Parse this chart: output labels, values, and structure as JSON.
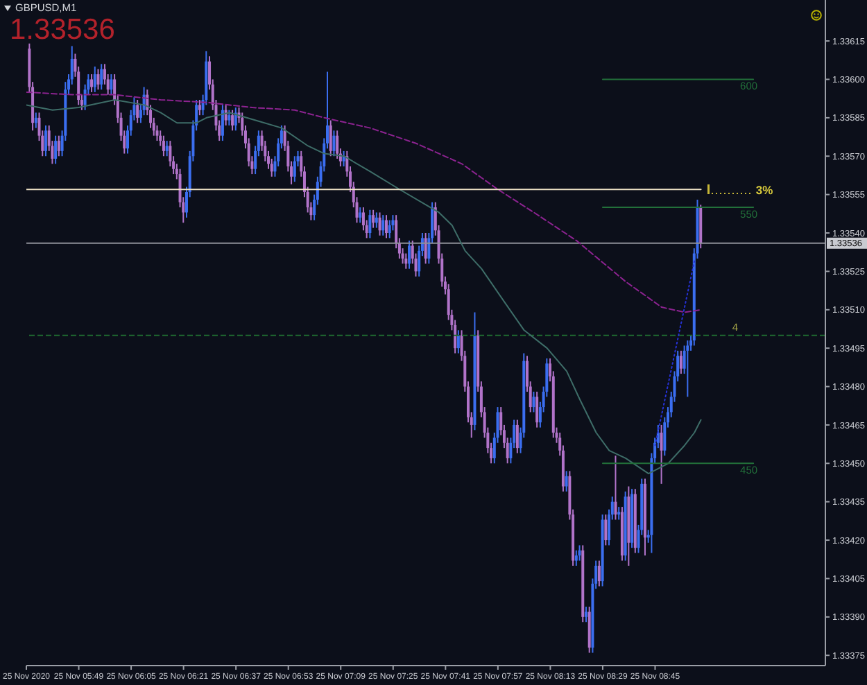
{
  "chart_data": {
    "type": "candlestick",
    "title": "GBPUSD,M1",
    "subtitle": "1.33536",
    "x": [
      "2020-11-25T05:34",
      "2020-11-25T05:35",
      "2020-11-25T05:36",
      "2020-11-25T05:37",
      "2020-11-25T05:38",
      "2020-11-25T05:39",
      "2020-11-25T05:40",
      "2020-11-25T05:41",
      "2020-11-25T05:42",
      "2020-11-25T05:43",
      "2020-11-25T05:44",
      "2020-11-25T05:45",
      "2020-11-25T05:46",
      "2020-11-25T05:47",
      "2020-11-25T05:48",
      "2020-11-25T05:49",
      "2020-11-25T05:50",
      "2020-11-25T05:51",
      "2020-11-25T05:52",
      "2020-11-25T05:53",
      "2020-11-25T05:54",
      "2020-11-25T05:55",
      "2020-11-25T05:56",
      "2020-11-25T05:57",
      "2020-11-25T05:58",
      "2020-11-25T05:59",
      "2020-11-25T06:00",
      "2020-11-25T06:01",
      "2020-11-25T06:02",
      "2020-11-25T06:03",
      "2020-11-25T06:04",
      "2020-11-25T06:05",
      "2020-11-25T06:06",
      "2020-11-25T06:07",
      "2020-11-25T06:08",
      "2020-11-25T06:09",
      "2020-11-25T06:10",
      "2020-11-25T06:11",
      "2020-11-25T06:12",
      "2020-11-25T06:13",
      "2020-11-25T06:14",
      "2020-11-25T06:15",
      "2020-11-25T06:16",
      "2020-11-25T06:17",
      "2020-11-25T06:18",
      "2020-11-25T06:19",
      "2020-11-25T06:20",
      "2020-11-25T06:21",
      "2020-11-25T06:22",
      "2020-11-25T06:23",
      "2020-11-25T06:24",
      "2020-11-25T06:25",
      "2020-11-25T06:26",
      "2020-11-25T06:27",
      "2020-11-25T06:28",
      "2020-11-25T06:29",
      "2020-11-25T06:30",
      "2020-11-25T06:31",
      "2020-11-25T06:32",
      "2020-11-25T06:33",
      "2020-11-25T06:34",
      "2020-11-25T06:35",
      "2020-11-25T06:36",
      "2020-11-25T06:37",
      "2020-11-25T06:38",
      "2020-11-25T06:39",
      "2020-11-25T06:40",
      "2020-11-25T06:41",
      "2020-11-25T06:42",
      "2020-11-25T06:43",
      "2020-11-25T06:44",
      "2020-11-25T06:45",
      "2020-11-25T06:46",
      "2020-11-25T06:47",
      "2020-11-25T06:48",
      "2020-11-25T06:49",
      "2020-11-25T06:50",
      "2020-11-25T06:51",
      "2020-11-25T06:52",
      "2020-11-25T06:53",
      "2020-11-25T06:54",
      "2020-11-25T06:55",
      "2020-11-25T06:56",
      "2020-11-25T06:57",
      "2020-11-25T06:58",
      "2020-11-25T06:59",
      "2020-11-25T07:00",
      "2020-11-25T07:01",
      "2020-11-25T07:02",
      "2020-11-25T07:03",
      "2020-11-25T07:04",
      "2020-11-25T07:05",
      "2020-11-25T07:06",
      "2020-11-25T07:07",
      "2020-11-25T07:08",
      "2020-11-25T07:09",
      "2020-11-25T07:10",
      "2020-11-25T07:11",
      "2020-11-25T07:12",
      "2020-11-25T07:13",
      "2020-11-25T07:14",
      "2020-11-25T07:15",
      "2020-11-25T07:16",
      "2020-11-25T07:17",
      "2020-11-25T07:18",
      "2020-11-25T07:19",
      "2020-11-25T07:20",
      "2020-11-25T07:21",
      "2020-11-25T07:22",
      "2020-11-25T07:23",
      "2020-11-25T07:24",
      "2020-11-25T07:25",
      "2020-11-25T07:26",
      "2020-11-25T07:27",
      "2020-11-25T07:28",
      "2020-11-25T07:29",
      "2020-11-25T07:30",
      "2020-11-25T07:31",
      "2020-11-25T07:32",
      "2020-11-25T07:33",
      "2020-11-25T07:34",
      "2020-11-25T07:35",
      "2020-11-25T07:36",
      "2020-11-25T07:37",
      "2020-11-25T07:38",
      "2020-11-25T07:39",
      "2020-11-25T07:40",
      "2020-11-25T07:41",
      "2020-11-25T07:42",
      "2020-11-25T07:43",
      "2020-11-25T07:44",
      "2020-11-25T07:45",
      "2020-11-25T07:46",
      "2020-11-25T07:47",
      "2020-11-25T07:48",
      "2020-11-25T07:49",
      "2020-11-25T07:50",
      "2020-11-25T07:51",
      "2020-11-25T07:52",
      "2020-11-25T07:53",
      "2020-11-25T07:54",
      "2020-11-25T07:55",
      "2020-11-25T07:56",
      "2020-11-25T07:57",
      "2020-11-25T07:58",
      "2020-11-25T07:59",
      "2020-11-25T08:00",
      "2020-11-25T08:01",
      "2020-11-25T08:02",
      "2020-11-25T08:03",
      "2020-11-25T08:04",
      "2020-11-25T08:05",
      "2020-11-25T08:06",
      "2020-11-25T08:07",
      "2020-11-25T08:08",
      "2020-11-25T08:09",
      "2020-11-25T08:10",
      "2020-11-25T08:11",
      "2020-11-25T08:12",
      "2020-11-25T08:13",
      "2020-11-25T08:14",
      "2020-11-25T08:15",
      "2020-11-25T08:16",
      "2020-11-25T08:17",
      "2020-11-25T08:18",
      "2020-11-25T08:19",
      "2020-11-25T08:20",
      "2020-11-25T08:21",
      "2020-11-25T08:22",
      "2020-11-25T08:23",
      "2020-11-25T08:24",
      "2020-11-25T08:25",
      "2020-11-25T08:26",
      "2020-11-25T08:27",
      "2020-11-25T08:28",
      "2020-11-25T08:29",
      "2020-11-25T08:30",
      "2020-11-25T08:31",
      "2020-11-25T08:32",
      "2020-11-25T08:33",
      "2020-11-25T08:34",
      "2020-11-25T08:35",
      "2020-11-25T08:36",
      "2020-11-25T08:37",
      "2020-11-25T08:38",
      "2020-11-25T08:39",
      "2020-11-25T08:40",
      "2020-11-25T08:41",
      "2020-11-25T08:42",
      "2020-11-25T08:43",
      "2020-11-25T08:44",
      "2020-11-25T08:45",
      "2020-11-25T08:46",
      "2020-11-25T08:47",
      "2020-11-25T08:48",
      "2020-11-25T08:49",
      "2020-11-25T08:50",
      "2020-11-25T08:51",
      "2020-11-25T08:52",
      "2020-11-25T08:53",
      "2020-11-25T08:54",
      "2020-11-25T08:55",
      "2020-11-25T08:56",
      "2020-11-25T08:57",
      "2020-11-25T08:58",
      "2020-11-25T08:59"
    ],
    "ohlc": [
      [
        1.33612,
        1.33614,
        1.33595,
        1.33597
      ],
      [
        1.33597,
        1.33599,
        1.3358,
        1.33583
      ],
      [
        1.33583,
        1.33587,
        1.33581,
        1.33585
      ],
      [
        1.33585,
        1.33587,
        1.33576,
        1.33578
      ],
      [
        1.33578,
        1.3358,
        1.3357,
        1.33572
      ],
      [
        1.33572,
        1.33582,
        1.3357,
        1.3358
      ],
      [
        1.3358,
        1.33582,
        1.33572,
        1.33574
      ],
      [
        1.33574,
        1.33576,
        1.33567,
        1.33569
      ],
      [
        1.33569,
        1.33578,
        1.33567,
        1.33576
      ],
      [
        1.33576,
        1.33578,
        1.3357,
        1.33572
      ],
      [
        1.33572,
        1.3358,
        1.3357,
        1.33578
      ],
      [
        1.33578,
        1.33599,
        1.33576,
        1.33596
      ],
      [
        1.33596,
        1.33602,
        1.33594,
        1.336
      ],
      [
        1.336,
        1.33613,
        1.33598,
        1.33608
      ],
      [
        1.33608,
        1.3361,
        1.33601,
        1.33603
      ],
      [
        1.33603,
        1.33605,
        1.3359,
        1.33592
      ],
      [
        1.33592,
        1.33594,
        1.33588,
        1.3359
      ],
      [
        1.3359,
        1.33598,
        1.33588,
        1.33596
      ],
      [
        1.33596,
        1.33602,
        1.33594,
        1.336
      ],
      [
        1.336,
        1.33602,
        1.33595,
        1.33597
      ],
      [
        1.33597,
        1.33605,
        1.33595,
        1.33602
      ],
      [
        1.33602,
        1.33604,
        1.33596,
        1.33598
      ],
      [
        1.33598,
        1.33606,
        1.33596,
        1.33604
      ],
      [
        1.33604,
        1.33606,
        1.33598,
        1.336
      ],
      [
        1.336,
        1.33602,
        1.33594,
        1.33596
      ],
      [
        1.33596,
        1.33602,
        1.33594,
        1.336
      ],
      [
        1.336,
        1.33602,
        1.3359,
        1.33592
      ],
      [
        1.33592,
        1.33594,
        1.33583,
        1.33585
      ],
      [
        1.33585,
        1.33587,
        1.33576,
        1.33578
      ],
      [
        1.33578,
        1.3358,
        1.33571,
        1.33573
      ],
      [
        1.33573,
        1.33582,
        1.33571,
        1.3358
      ],
      [
        1.3358,
        1.33588,
        1.33578,
        1.33586
      ],
      [
        1.33586,
        1.33593,
        1.33584,
        1.3359
      ],
      [
        1.3359,
        1.33592,
        1.33583,
        1.33585
      ],
      [
        1.33585,
        1.3359,
        1.33583,
        1.33588
      ],
      [
        1.33588,
        1.33597,
        1.33586,
        1.33594
      ],
      [
        1.33594,
        1.33596,
        1.33586,
        1.33588
      ],
      [
        1.33588,
        1.3359,
        1.33581,
        1.33583
      ],
      [
        1.33583,
        1.33585,
        1.33578,
        1.3358
      ],
      [
        1.3358,
        1.33582,
        1.33576,
        1.33578
      ],
      [
        1.33578,
        1.3358,
        1.33574,
        1.33576
      ],
      [
        1.33576,
        1.33578,
        1.3357,
        1.33572
      ],
      [
        1.33572,
        1.33576,
        1.3357,
        1.33574
      ],
      [
        1.33574,
        1.33576,
        1.33566,
        1.33568
      ],
      [
        1.33568,
        1.3357,
        1.33563,
        1.33565
      ],
      [
        1.33565,
        1.33567,
        1.33561,
        1.33563
      ],
      [
        1.33563,
        1.33565,
        1.3355,
        1.33552
      ],
      [
        1.33552,
        1.33554,
        1.33544,
        1.33548
      ],
      [
        1.33548,
        1.33558,
        1.33546,
        1.33556
      ],
      [
        1.33556,
        1.33572,
        1.33554,
        1.3357
      ],
      [
        1.3357,
        1.33584,
        1.33568,
        1.33582
      ],
      [
        1.33582,
        1.33592,
        1.3358,
        1.3359
      ],
      [
        1.3359,
        1.33592,
        1.33586,
        1.33588
      ],
      [
        1.33588,
        1.33594,
        1.33586,
        1.33592
      ],
      [
        1.33592,
        1.33611,
        1.3359,
        1.33607
      ],
      [
        1.33607,
        1.33609,
        1.33596,
        1.33598
      ],
      [
        1.33598,
        1.336,
        1.33588,
        1.3359
      ],
      [
        1.3359,
        1.33592,
        1.3358,
        1.33582
      ],
      [
        1.33582,
        1.33584,
        1.33576,
        1.33578
      ],
      [
        1.33578,
        1.3359,
        1.33576,
        1.33588
      ],
      [
        1.33588,
        1.3359,
        1.33582,
        1.33584
      ],
      [
        1.33584,
        1.33588,
        1.33582,
        1.33586
      ],
      [
        1.33586,
        1.33588,
        1.3358,
        1.33582
      ],
      [
        1.33582,
        1.33589,
        1.3358,
        1.33587
      ],
      [
        1.33587,
        1.33589,
        1.33583,
        1.33585
      ],
      [
        1.33585,
        1.33587,
        1.33578,
        1.3358
      ],
      [
        1.3358,
        1.33582,
        1.33573,
        1.33575
      ],
      [
        1.33575,
        1.33577,
        1.33566,
        1.33568
      ],
      [
        1.33568,
        1.3357,
        1.33563,
        1.33565
      ],
      [
        1.33565,
        1.33574,
        1.33563,
        1.33572
      ],
      [
        1.33572,
        1.3358,
        1.3357,
        1.33578
      ],
      [
        1.33578,
        1.3358,
        1.33572,
        1.33574
      ],
      [
        1.33574,
        1.33576,
        1.33568,
        1.3357
      ],
      [
        1.3357,
        1.33572,
        1.33565,
        1.33567
      ],
      [
        1.33567,
        1.33569,
        1.33562,
        1.33564
      ],
      [
        1.33564,
        1.3357,
        1.33562,
        1.33568
      ],
      [
        1.33568,
        1.33577,
        1.33566,
        1.33575
      ],
      [
        1.33575,
        1.33582,
        1.33573,
        1.3358
      ],
      [
        1.3358,
        1.33582,
        1.33572,
        1.33574
      ],
      [
        1.33574,
        1.33576,
        1.33564,
        1.33566
      ],
      [
        1.33566,
        1.33568,
        1.33559,
        1.33562
      ],
      [
        1.33562,
        1.3357,
        1.3356,
        1.33568
      ],
      [
        1.33568,
        1.33572,
        1.33566,
        1.3357
      ],
      [
        1.3357,
        1.33572,
        1.33562,
        1.33564
      ],
      [
        1.33564,
        1.33566,
        1.33554,
        1.33556
      ],
      [
        1.33556,
        1.33558,
        1.33548,
        1.3355
      ],
      [
        1.3355,
        1.33552,
        1.33545,
        1.33547
      ],
      [
        1.33547,
        1.33555,
        1.33545,
        1.33553
      ],
      [
        1.33553,
        1.33562,
        1.33551,
        1.3356
      ],
      [
        1.3356,
        1.33568,
        1.33558,
        1.33566
      ],
      [
        1.33566,
        1.33577,
        1.33564,
        1.33575
      ],
      [
        1.33575,
        1.33603,
        1.33573,
        1.33582
      ],
      [
        1.33582,
        1.33584,
        1.3357,
        1.33572
      ],
      [
        1.33572,
        1.3358,
        1.3357,
        1.33578
      ],
      [
        1.33578,
        1.3358,
        1.33569,
        1.33571
      ],
      [
        1.33571,
        1.33573,
        1.33566,
        1.33568
      ],
      [
        1.33568,
        1.33572,
        1.33566,
        1.3357
      ],
      [
        1.3357,
        1.33572,
        1.33562,
        1.33564
      ],
      [
        1.33564,
        1.33566,
        1.33556,
        1.33558
      ],
      [
        1.33558,
        1.3356,
        1.3355,
        1.33552
      ],
      [
        1.33552,
        1.33554,
        1.33544,
        1.33546
      ],
      [
        1.33546,
        1.3355,
        1.33544,
        1.33548
      ],
      [
        1.33548,
        1.3355,
        1.33541,
        1.33543
      ],
      [
        1.33543,
        1.33545,
        1.33538,
        1.3354
      ],
      [
        1.3354,
        1.33549,
        1.33538,
        1.33547
      ],
      [
        1.33547,
        1.33549,
        1.33542,
        1.33544
      ],
      [
        1.33544,
        1.33548,
        1.33542,
        1.33546
      ],
      [
        1.33546,
        1.33548,
        1.33539,
        1.33541
      ],
      [
        1.33541,
        1.33547,
        1.33539,
        1.33545
      ],
      [
        1.33545,
        1.33547,
        1.33538,
        1.3354
      ],
      [
        1.3354,
        1.33545,
        1.33538,
        1.33543
      ],
      [
        1.33543,
        1.33547,
        1.33541,
        1.33545
      ],
      [
        1.33545,
        1.33547,
        1.33534,
        1.33536
      ],
      [
        1.33536,
        1.33538,
        1.3353,
        1.33532
      ],
      [
        1.33532,
        1.33534,
        1.33528,
        1.3353
      ],
      [
        1.3353,
        1.33532,
        1.33526,
        1.33528
      ],
      [
        1.33528,
        1.33537,
        1.33526,
        1.33535
      ],
      [
        1.33535,
        1.33537,
        1.33528,
        1.3353
      ],
      [
        1.3353,
        1.33532,
        1.33523,
        1.33525
      ],
      [
        1.33525,
        1.33535,
        1.33523,
        1.33533
      ],
      [
        1.33533,
        1.3354,
        1.33531,
        1.33538
      ],
      [
        1.33538,
        1.3354,
        1.33528,
        1.3353
      ],
      [
        1.3353,
        1.3354,
        1.33528,
        1.33538
      ],
      [
        1.33538,
        1.33552,
        1.33536,
        1.3355
      ],
      [
        1.3355,
        1.33552,
        1.33539,
        1.33541
      ],
      [
        1.33541,
        1.33543,
        1.33528,
        1.3353
      ],
      [
        1.3353,
        1.33532,
        1.33519,
        1.33521
      ],
      [
        1.33521,
        1.33523,
        1.33516,
        1.33518
      ],
      [
        1.33518,
        1.3352,
        1.33506,
        1.33508
      ],
      [
        1.33508,
        1.3351,
        1.33502,
        1.33504
      ],
      [
        1.33504,
        1.33506,
        1.33493,
        1.33495
      ],
      [
        1.33495,
        1.33502,
        1.33493,
        1.335
      ],
      [
        1.335,
        1.33502,
        1.3349,
        1.33492
      ],
      [
        1.33492,
        1.33494,
        1.33478,
        1.3348
      ],
      [
        1.3348,
        1.33482,
        1.33466,
        1.33468
      ],
      [
        1.33468,
        1.3347,
        1.3346,
        1.33465
      ],
      [
        1.33465,
        1.33509,
        1.33463,
        1.335
      ],
      [
        1.335,
        1.33502,
        1.33478,
        1.3348
      ],
      [
        1.3348,
        1.33482,
        1.33468,
        1.3347
      ],
      [
        1.3347,
        1.33472,
        1.3346,
        1.33462
      ],
      [
        1.33462,
        1.33464,
        1.33454,
        1.33456
      ],
      [
        1.33456,
        1.33458,
        1.3345,
        1.33452
      ],
      [
        1.33452,
        1.33462,
        1.3345,
        1.3346
      ],
      [
        1.3346,
        1.33472,
        1.33458,
        1.3347
      ],
      [
        1.3347,
        1.33472,
        1.33461,
        1.33463
      ],
      [
        1.33463,
        1.33465,
        1.33456,
        1.33458
      ],
      [
        1.33458,
        1.3346,
        1.3345,
        1.33452
      ],
      [
        1.33452,
        1.3346,
        1.3345,
        1.33458
      ],
      [
        1.33458,
        1.33467,
        1.33456,
        1.33465
      ],
      [
        1.33465,
        1.33467,
        1.33454,
        1.33456
      ],
      [
        1.33456,
        1.33464,
        1.33454,
        1.33462
      ],
      [
        1.33462,
        1.33493,
        1.3346,
        1.3349
      ],
      [
        1.3349,
        1.33492,
        1.33478,
        1.3348
      ],
      [
        1.3348,
        1.33482,
        1.3347,
        1.33472
      ],
      [
        1.33472,
        1.33478,
        1.3347,
        1.33476
      ],
      [
        1.33476,
        1.33478,
        1.33464,
        1.33466
      ],
      [
        1.33466,
        1.33474,
        1.33464,
        1.33472
      ],
      [
        1.33472,
        1.3348,
        1.3347,
        1.33478
      ],
      [
        1.33478,
        1.33491,
        1.33476,
        1.33489
      ],
      [
        1.33489,
        1.33491,
        1.33482,
        1.33484
      ],
      [
        1.33484,
        1.33486,
        1.3346,
        1.33462
      ],
      [
        1.33462,
        1.33464,
        1.33458,
        1.3346
      ],
      [
        1.3346,
        1.33462,
        1.33453,
        1.33455
      ],
      [
        1.33455,
        1.33457,
        1.33439,
        1.33441
      ],
      [
        1.33441,
        1.33447,
        1.33439,
        1.33445
      ],
      [
        1.33445,
        1.33447,
        1.33428,
        1.3343
      ],
      [
        1.3343,
        1.33432,
        1.3341,
        1.33412
      ],
      [
        1.33412,
        1.33416,
        1.3341,
        1.33414
      ],
      [
        1.33414,
        1.33418,
        1.33412,
        1.33416
      ],
      [
        1.33416,
        1.33418,
        1.33388,
        1.3339
      ],
      [
        1.3339,
        1.33394,
        1.33388,
        1.33392
      ],
      [
        1.33392,
        1.33394,
        1.33376,
        1.33378
      ],
      [
        1.33378,
        1.33405,
        1.33376,
        1.33403
      ],
      [
        1.33403,
        1.33412,
        1.33401,
        1.3341
      ],
      [
        1.3341,
        1.33412,
        1.33402,
        1.33404
      ],
      [
        1.33404,
        1.3343,
        1.33402,
        1.33428
      ],
      [
        1.33428,
        1.3343,
        1.33418,
        1.3342
      ],
      [
        1.3342,
        1.33432,
        1.33418,
        1.3343
      ],
      [
        1.3343,
        1.33437,
        1.33428,
        1.33435
      ],
      [
        1.33435,
        1.33453,
        1.33428,
        1.3343
      ],
      [
        1.3343,
        1.33433,
        1.33428,
        1.33431
      ],
      [
        1.33431,
        1.33433,
        1.33412,
        1.33414
      ],
      [
        1.33414,
        1.33439,
        1.33412,
        1.33437
      ],
      [
        1.33437,
        1.33441,
        1.3341,
        1.33419
      ],
      [
        1.33419,
        1.3344,
        1.33417,
        1.33438
      ],
      [
        1.33438,
        1.3344,
        1.33415,
        1.33417
      ],
      [
        1.33417,
        1.33426,
        1.33415,
        1.33424
      ],
      [
        1.33424,
        1.33444,
        1.33422,
        1.33442
      ],
      [
        1.33442,
        1.33444,
        1.33414,
        1.33421
      ],
      [
        1.33421,
        1.33424,
        1.33419,
        1.33422
      ],
      [
        1.33422,
        1.33454,
        1.33415,
        1.33452
      ],
      [
        1.33452,
        1.3346,
        1.3345,
        1.33458
      ],
      [
        1.33458,
        1.33465,
        1.33456,
        1.33462
      ],
      [
        1.33462,
        1.33465,
        1.33442,
        1.33455
      ],
      [
        1.33455,
        1.33468,
        1.33453,
        1.33466
      ],
      [
        1.33466,
        1.33472,
        1.33464,
        1.3347
      ],
      [
        1.3347,
        1.33478,
        1.33468,
        1.33476
      ],
      [
        1.33476,
        1.33486,
        1.33474,
        1.33484
      ],
      [
        1.33484,
        1.33494,
        1.33482,
        1.33492
      ],
      [
        1.33492,
        1.33494,
        1.33485,
        1.33487
      ],
      [
        1.33487,
        1.33496,
        1.33485,
        1.33494
      ],
      [
        1.33494,
        1.33498,
        1.33476,
        1.33496
      ],
      [
        1.33496,
        1.335,
        1.33494,
        1.33498
      ],
      [
        1.33498,
        1.33534,
        1.33496,
        1.33532
      ],
      [
        1.33532,
        1.33553,
        1.3353,
        1.3355
      ],
      [
        1.3355,
        1.33551,
        1.33534,
        1.33536
      ]
    ],
    "colors": [
      "#b173c9",
      "#b173c9",
      "#3b6ef0",
      "#b173c9",
      "#b173c9",
      "#3b6ef0",
      "#b173c9",
      "#b173c9",
      "#3b6ef0",
      "#b173c9",
      "#3b6ef0",
      "#3b6ef0",
      "#3b6ef0",
      "#3b6ef0",
      "#b173c9",
      "#b173c9",
      "#b173c9",
      "#3b6ef0",
      "#3b6ef0",
      "#b173c9",
      "#3b6ef0",
      "#b173c9",
      "#3b6ef0",
      "#b173c9",
      "#b173c9",
      "#3b6ef0",
      "#b173c9",
      "#b173c9",
      "#b173c9",
      "#b173c9",
      "#3b6ef0",
      "#3b6ef0",
      "#3b6ef0",
      "#b173c9",
      "#3b6ef0",
      "#3b6ef0",
      "#b173c9",
      "#b173c9",
      "#b173c9",
      "#b173c9",
      "#b173c9",
      "#b173c9",
      "#3b6ef0",
      "#b173c9",
      "#b173c9",
      "#b173c9",
      "#b173c9",
      "#b173c9",
      "#3b6ef0",
      "#3b6ef0",
      "#3b6ef0",
      "#3b6ef0",
      "#b173c9",
      "#3b6ef0",
      "#3b6ef0",
      "#b173c9",
      "#b173c9",
      "#b173c9",
      "#b173c9",
      "#3b6ef0",
      "#b173c9",
      "#3b6ef0",
      "#b173c9",
      "#3b6ef0",
      "#b173c9",
      "#b173c9",
      "#b173c9",
      "#b173c9",
      "#b173c9",
      "#3b6ef0",
      "#3b6ef0",
      "#b173c9",
      "#b173c9",
      "#b173c9",
      "#b173c9",
      "#3b6ef0",
      "#3b6ef0",
      "#3b6ef0",
      "#b173c9",
      "#b173c9",
      "#b173c9",
      "#3b6ef0",
      "#3b6ef0",
      "#b173c9",
      "#b173c9",
      "#b173c9",
      "#b173c9",
      "#3b6ef0",
      "#3b6ef0",
      "#3b6ef0",
      "#3b6ef0",
      "#3b6ef0",
      "#b173c9",
      "#3b6ef0",
      "#b173c9",
      "#b173c9",
      "#3b6ef0",
      "#b173c9",
      "#b173c9",
      "#b173c9",
      "#b173c9",
      "#3b6ef0",
      "#b173c9",
      "#b173c9",
      "#3b6ef0",
      "#b173c9",
      "#3b6ef0",
      "#b173c9",
      "#3b6ef0",
      "#b173c9",
      "#3b6ef0",
      "#3b6ef0",
      "#b173c9",
      "#b173c9",
      "#b173c9",
      "#b173c9",
      "#3b6ef0",
      "#b173c9",
      "#b173c9",
      "#3b6ef0",
      "#3b6ef0",
      "#b173c9",
      "#3b6ef0",
      "#3b6ef0",
      "#b173c9",
      "#b173c9",
      "#b173c9",
      "#b173c9",
      "#b173c9",
      "#b173c9",
      "#b173c9",
      "#3b6ef0",
      "#b173c9",
      "#b173c9",
      "#b173c9",
      "#b173c9",
      "#3b6ef0",
      "#b173c9",
      "#b173c9",
      "#b173c9",
      "#b173c9",
      "#b173c9",
      "#3b6ef0",
      "#3b6ef0",
      "#b173c9",
      "#b173c9",
      "#b173c9",
      "#3b6ef0",
      "#3b6ef0",
      "#b173c9",
      "#3b6ef0",
      "#3b6ef0",
      "#b173c9",
      "#b173c9",
      "#3b6ef0",
      "#b173c9",
      "#3b6ef0",
      "#3b6ef0",
      "#3b6ef0",
      "#b173c9",
      "#b173c9",
      "#b173c9",
      "#b173c9",
      "#b173c9",
      "#3b6ef0",
      "#b173c9",
      "#b173c9",
      "#3b6ef0",
      "#3b6ef0",
      "#b173c9",
      "#3b6ef0",
      "#b173c9",
      "#3b6ef0",
      "#3b6ef0",
      "#b173c9",
      "#3b6ef0",
      "#b173c9",
      "#3b6ef0",
      "#3b6ef0",
      "#b173c9",
      "#3b6ef0",
      "#b173c9",
      "#3b6ef0",
      "#b173c9",
      "#3b6ef0",
      "#b173c9",
      "#3b6ef0",
      "#3b6ef0",
      "#b173c9",
      "#3b6ef0",
      "#3b6ef0",
      "#3b6ef0",
      "#3b6ef0",
      "#b173c9",
      "#3b6ef0",
      "#3b6ef0",
      "#3b6ef0",
      "#3b6ef0",
      "#3b6ef0",
      "#b173c9",
      "#3b6ef0",
      "#3b6ef0",
      "#3b6ef0",
      "#3b6ef0",
      "#3b6ef0",
      "#b173c9"
    ],
    "xlim": [
      "2020-11-25T05:33",
      "2020-11-25T09:37"
    ],
    "xticks": [
      {
        "value": "2020-11-25T05:33",
        "label": "25 Nov 2020"
      },
      {
        "value": "2020-11-25T05:49",
        "label": "25 Nov 05:49"
      },
      {
        "value": "2020-11-25T06:05",
        "label": "25 Nov 06:05"
      },
      {
        "value": "2020-11-25T06:21",
        "label": "25 Nov 06:21"
      },
      {
        "value": "2020-11-25T06:37",
        "label": "25 Nov 06:37"
      },
      {
        "value": "2020-11-25T06:53",
        "label": "25 Nov 06:53"
      },
      {
        "value": "2020-11-25T07:09",
        "label": "25 Nov 07:09"
      },
      {
        "value": "2020-11-25T07:25",
        "label": "25 Nov 07:25"
      },
      {
        "value": "2020-11-25T07:41",
        "label": "25 Nov 07:41"
      },
      {
        "value": "2020-11-25T07:57",
        "label": "25 Nov 07:57"
      },
      {
        "value": "2020-11-25T08:13",
        "label": "25 Nov 08:13"
      },
      {
        "value": "2020-11-25T08:29",
        "label": "25 Nov 08:29"
      },
      {
        "value": "2020-11-25T08:45",
        "label": "25 Nov 08:45"
      }
    ],
    "ylim": [
      1.33371,
      1.33631
    ],
    "yticks": [
      1.33375,
      {
        "value": 1.3339,
        "label": "1.33390"
      },
      1.33405,
      {
        "value": 1.3342,
        "label": "1.33420"
      },
      1.33435,
      {
        "value": 1.3345,
        "label": "1.33450"
      },
      1.33465,
      {
        "value": 1.3348,
        "label": "1.33480"
      },
      1.33495,
      {
        "value": 1.3351,
        "label": "1.33510"
      },
      1.33525,
      {
        "value": 1.3354,
        "label": "1.33540"
      },
      1.33555,
      {
        "value": 1.3357,
        "label": "1.33570"
      },
      1.33585,
      {
        "value": 1.336,
        "label": "1.33600"
      },
      1.33615
    ],
    "series": [
      {
        "type": "line",
        "color": "#3e6d68",
        "x": [
          "2020-11-25T05:33",
          "2020-11-25T05:41",
          "2020-11-25T05:49",
          "2020-11-25T06:00",
          "2020-11-25T06:09",
          "2020-11-25T06:14",
          "2020-11-25T06:19",
          "2020-11-25T06:25",
          "2020-11-25T06:28",
          "2020-11-25T06:35",
          "2020-11-25T06:43",
          "2020-11-25T06:51",
          "2020-11-25T06:59",
          "2020-11-25T07:04",
          "2020-11-25T07:10",
          "2020-11-25T07:18",
          "2020-11-25T07:27",
          "2020-11-25T07:35",
          "2020-11-25T07:39",
          "2020-11-25T07:43",
          "2020-11-25T07:47",
          "2020-11-25T07:52",
          "2020-11-25T07:59",
          "2020-11-25T08:05",
          "2020-11-25T08:12",
          "2020-11-25T08:18",
          "2020-11-25T08:22",
          "2020-11-25T08:27",
          "2020-11-25T08:31",
          "2020-11-25T08:36",
          "2020-11-25T08:43",
          "2020-11-25T08:49",
          "2020-11-25T08:54",
          "2020-11-25T08:57",
          "2020-11-25T08:59"
        ],
        "values": [
          1.3359,
          1.33588,
          1.33589,
          1.33592,
          1.3359,
          1.33587,
          1.33583,
          1.33583,
          1.33585,
          1.33587,
          1.33584,
          1.33581,
          1.33574,
          1.33571,
          1.3357,
          1.33564,
          1.33557,
          1.33551,
          1.33548,
          1.33543,
          1.33533,
          1.33526,
          1.33513,
          1.33502,
          1.33495,
          1.33486,
          1.33475,
          1.33462,
          1.33455,
          1.33452,
          1.33446,
          1.3345,
          1.33457,
          1.33462,
          1.33467
        ]
      },
      {
        "type": "line",
        "color": "#8c2390",
        "line_style": "dashed",
        "x": [
          "2020-11-25T05:33",
          "2020-11-25T05:47",
          "2020-11-25T06:00",
          "2020-11-25T06:14",
          "2020-11-25T06:28",
          "2020-11-25T06:42",
          "2020-11-25T06:55",
          "2020-11-25T07:04",
          "2020-11-25T07:18",
          "2020-11-25T07:32",
          "2020-11-25T07:46",
          "2020-11-25T07:57",
          "2020-11-25T08:08",
          "2020-11-25T08:21",
          "2020-11-25T08:36",
          "2020-11-25T08:47",
          "2020-11-25T08:54",
          "2020-11-25T08:59"
        ],
        "values": [
          1.33595,
          1.33594,
          1.33594,
          1.33592,
          1.33591,
          1.33589,
          1.33588,
          1.33585,
          1.33581,
          1.33575,
          1.33567,
          1.33557,
          1.33548,
          1.33537,
          1.33521,
          1.33511,
          1.33509,
          1.3351
        ]
      },
      {
        "type": "line",
        "color": "#2631d6",
        "line_style": "dotted",
        "x": [
          "2020-11-25T08:45",
          "2020-11-25T08:57"
        ],
        "values": [
          1.33457,
          1.33529
        ]
      },
      {
        "type": "line",
        "color": "#efe3c6",
        "x": [
          "2020-11-25T05:33",
          "2020-11-25T08:59"
        ],
        "values": [
          1.33557,
          1.33557
        ]
      },
      {
        "type": "line",
        "name": "600",
        "color": "#22703a",
        "x": [
          "2020-11-25T08:29",
          "2020-11-25T09:15"
        ],
        "values": [
          1.336,
          1.336
        ]
      },
      {
        "type": "line",
        "name": "550",
        "color": "#22703a",
        "x": [
          "2020-11-25T08:29",
          "2020-11-25T09:15"
        ],
        "values": [
          1.3355,
          1.3355
        ]
      },
      {
        "type": "line",
        "name": "450",
        "color": "#22703a",
        "x": [
          "2020-11-25T08:29",
          "2020-11-25T09:15"
        ],
        "values": [
          1.3345,
          1.3345
        ]
      }
    ],
    "ref_lines": [
      {
        "axis": "y",
        "value": 1.33536,
        "label": "1.33536",
        "color": "#8e9099"
      },
      {
        "axis": "y",
        "value": 1.335,
        "color": "#1f6b30",
        "line_style": "dashed"
      }
    ],
    "annotations": [
      "3%",
      "4"
    ],
    "marker": "none"
  }
}
